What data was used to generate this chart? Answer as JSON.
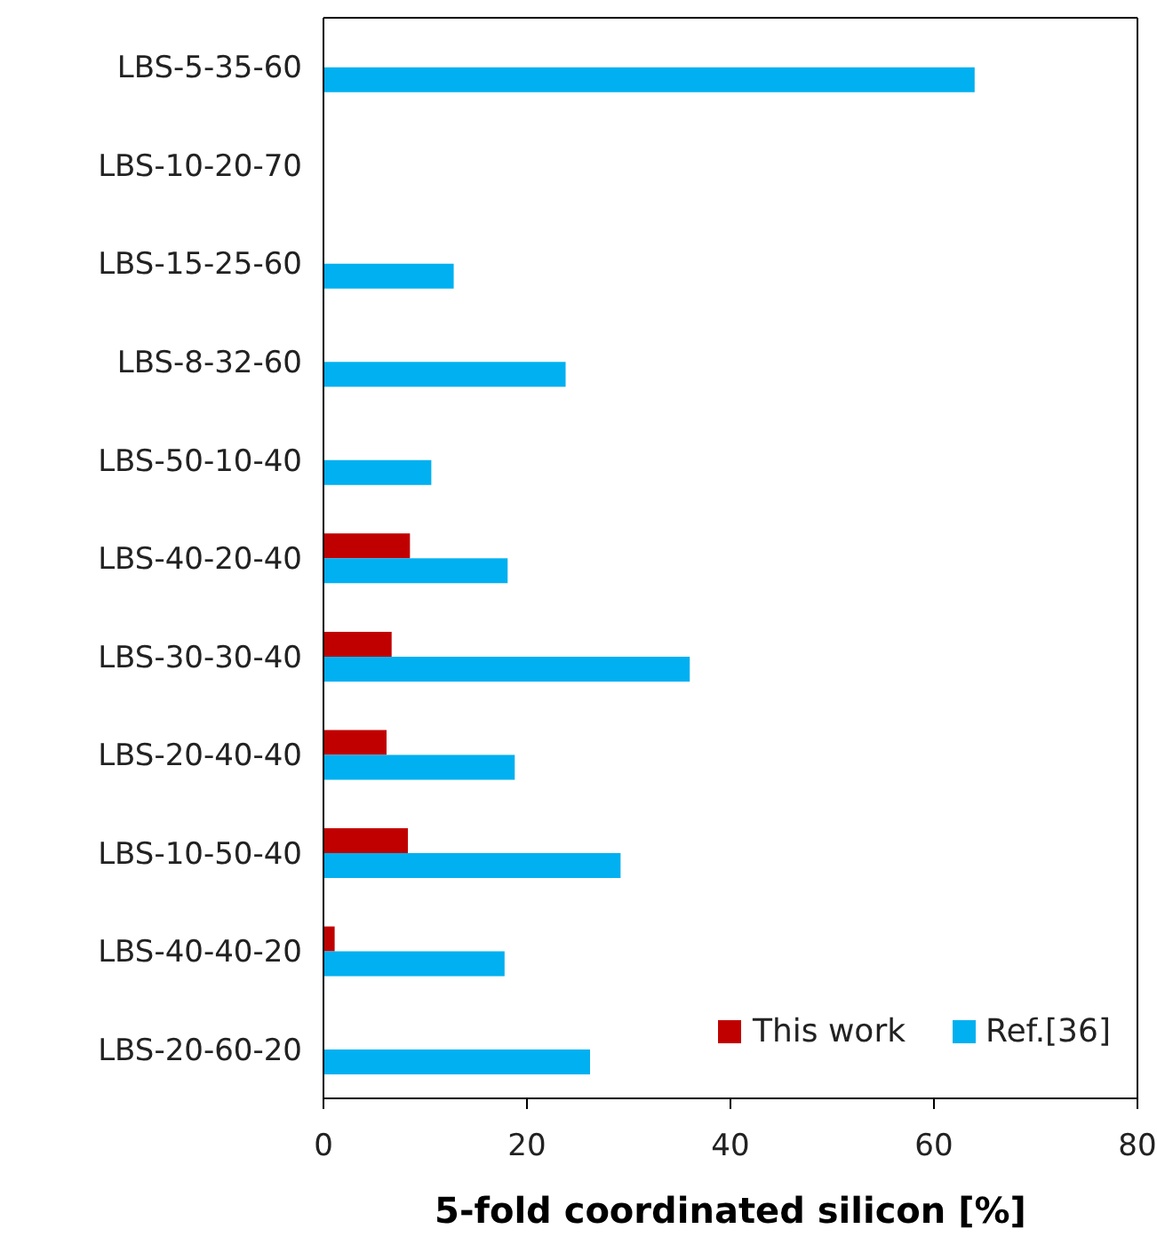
{
  "chart_data": {
    "type": "bar",
    "orientation": "horizontal",
    "xlabel": "5-fold coordinated silicon [%]",
    "categories": [
      "LBS-5-35-60",
      "LBS-10-20-70",
      "LBS-15-25-60",
      "LBS-8-32-60",
      "LBS-50-10-40",
      "LBS-40-20-40",
      "LBS-30-30-40",
      "LBS-20-40-40",
      "LBS-10-50-40",
      "LBS-40-40-20",
      "LBS-20-60-20"
    ],
    "series": [
      {
        "name": "This work",
        "color": "#c00000",
        "values": [
          null,
          null,
          null,
          null,
          null,
          8.5,
          6.7,
          6.2,
          8.3,
          1.1,
          null
        ]
      },
      {
        "name": "Ref.[36]",
        "color": "#00b0f0",
        "values": [
          64,
          null,
          12.8,
          23.8,
          10.6,
          18.1,
          36.0,
          18.8,
          29.2,
          17.8,
          26.2
        ]
      }
    ],
    "xlim": [
      0,
      80
    ],
    "xticks": [
      0,
      20,
      40,
      60,
      80
    ],
    "legend": "bottom right"
  }
}
